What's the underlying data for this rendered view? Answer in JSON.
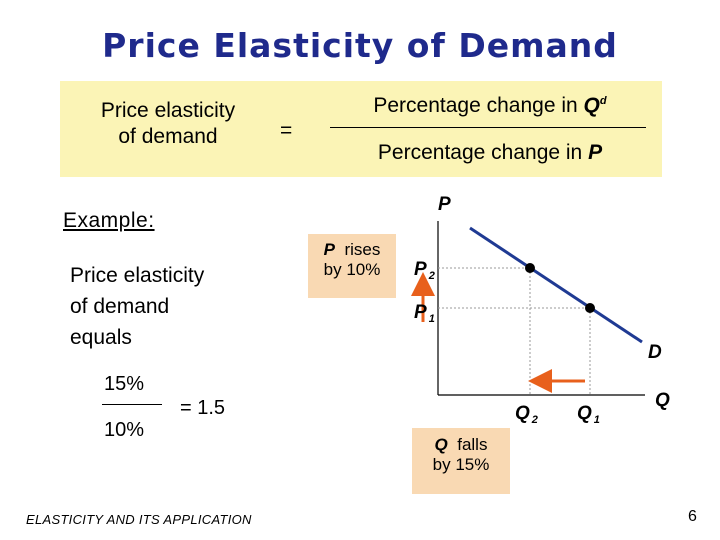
{
  "title": "Price Elasticity of Demand",
  "formula": {
    "left_line1": "Price elasticity",
    "left_line2": "of demand",
    "equals": "=",
    "numerator_prefix": "Percentage change in ",
    "numerator_var": "Q",
    "numerator_sup": "d",
    "denominator_prefix": "Percentage change in ",
    "denominator_var": "P"
  },
  "example": {
    "heading": "Example:",
    "line1": "Price elasticity",
    "line2": "of demand",
    "line3": "equals",
    "numerator": "15%",
    "denominator": "10%",
    "result": "=  1.5"
  },
  "graph": {
    "y_axis_label": "P",
    "x_axis_label": "Q",
    "curve_label": "D",
    "p2": {
      "var": "P",
      "sub": "2"
    },
    "p1": {
      "var": "P",
      "sub": "1"
    },
    "q2": {
      "var": "Q",
      "sub": "2"
    },
    "q1": {
      "var": "Q",
      "sub": "1"
    },
    "colors": {
      "curve": "#1f3a93",
      "arrow": "#e8601c",
      "guide": "#999999"
    }
  },
  "annotations": {
    "rises_var": "P",
    "rises_text": "rises",
    "rises_line2": "by 10%",
    "falls_var": "Q",
    "falls_text": "falls",
    "falls_line2": "by 15%"
  },
  "footer": "ELASTICITY AND ITS APPLICATION",
  "page_number": "6"
}
